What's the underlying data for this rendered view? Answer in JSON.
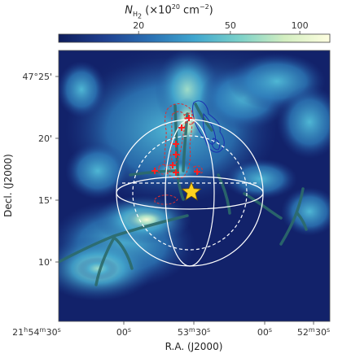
{
  "colorbar": {
    "label_symbol": "N",
    "label_subscript": "H",
    "label_subscript2": "2",
    "label_unit_prefix": "(×10",
    "label_exponent": "20",
    "label_unit": " cm",
    "label_unit_exp": "−2",
    "label_close": ")",
    "ticks": [
      "20",
      "50",
      "100"
    ],
    "tick_values": [
      20,
      50,
      100
    ],
    "range": [
      9,
      135
    ],
    "scale": "log",
    "colormap": [
      "#0e1d5c",
      "#1f3f8f",
      "#2a6fb3",
      "#3fa6cf",
      "#7bd1c9",
      "#d3eec0",
      "#fefee0"
    ]
  },
  "chart_data": {
    "type": "heatmap",
    "xlabel": "R.A. (J2000)",
    "ylabel": "Decl. (J2000)",
    "x_ticks": [
      "21h54m30s",
      "00s",
      "53m30s",
      "00s",
      "52m30s"
    ],
    "x_tick_labels": [
      {
        "h": "21",
        "hu": "h",
        "m": "54",
        "mu": "m",
        "s": "30",
        "su": "s"
      },
      {
        "h": "",
        "hu": "",
        "m": "",
        "mu": "",
        "s": "00",
        "su": "s"
      },
      {
        "h": "",
        "hu": "",
        "m": "53",
        "mu": "m",
        "s": "30",
        "su": "s"
      },
      {
        "h": "",
        "hu": "",
        "m": "",
        "mu": "",
        "s": "00",
        "su": "s"
      },
      {
        "h": "",
        "hu": "",
        "m": "52",
        "mu": "m",
        "s": "30",
        "su": "s"
      }
    ],
    "y_ticks": [
      "47°25'",
      "20'",
      "15'",
      "10'"
    ],
    "y_tick_values_arcmin": [
      25,
      20,
      15,
      10
    ],
    "grid": false,
    "overlays": {
      "star_marker": "gold-star",
      "sphere": "white-wireframe-sphere",
      "filaments": "dark-teal-skeleton-lines",
      "red_contours": "red-dashed-contours",
      "red_points": "red-plus-markers",
      "blue_contours": "blue-contours"
    }
  }
}
